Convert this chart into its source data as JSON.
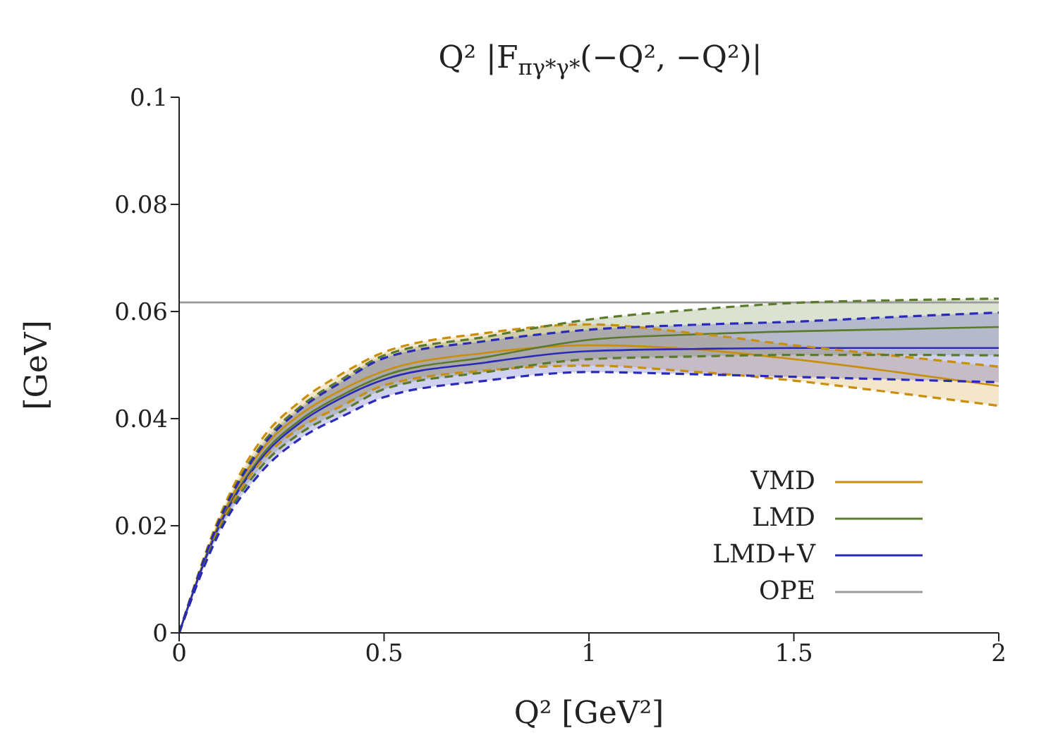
{
  "chart_data": {
    "type": "line",
    "title": "Q² |F$_{πγ*γ*}$(−Q², −Q²)|",
    "xlabel": "Q² [GeV²]",
    "ylabel": "[GeV]",
    "x": [
      0,
      0.1,
      0.2,
      0.3,
      0.4,
      0.5,
      0.75,
      1,
      1.25,
      1.5,
      1.75,
      2
    ],
    "series": [
      {
        "name": "VMD",
        "color": "#c98e0c",
        "values": [
          0,
          0.021,
          0.034,
          0.041,
          0.0455,
          0.0489,
          0.0523,
          0.0537,
          0.053,
          0.0511,
          0.0487,
          0.0461
        ],
        "lower": [
          0,
          0.02,
          0.032,
          0.0385,
          0.0425,
          0.0462,
          0.049,
          0.0499,
          0.0488,
          0.0471,
          0.0448,
          0.0424
        ],
        "upper": [
          0,
          0.022,
          0.036,
          0.0435,
          0.0485,
          0.0524,
          0.056,
          0.0576,
          0.056,
          0.0537,
          0.0517,
          0.0497
        ]
      },
      {
        "name": "LMD",
        "color": "#5b7a2c",
        "values": [
          0,
          0.0205,
          0.033,
          0.04,
          0.0445,
          0.048,
          0.0515,
          0.0547,
          0.0557,
          0.0563,
          0.0567,
          0.0571
        ],
        "lower": [
          0,
          0.0195,
          0.031,
          0.0375,
          0.0415,
          0.0455,
          0.0487,
          0.0511,
          0.0516,
          0.0519,
          0.0519,
          0.0518
        ],
        "upper": [
          0,
          0.0215,
          0.035,
          0.0425,
          0.0475,
          0.0518,
          0.0553,
          0.0585,
          0.0603,
          0.0616,
          0.0621,
          0.0624
        ]
      },
      {
        "name": "LMD+V",
        "color": "#2a2ab8",
        "values": [
          0,
          0.0203,
          0.0325,
          0.0395,
          0.044,
          0.0473,
          0.0505,
          0.0526,
          0.053,
          0.0532,
          0.0532,
          0.0532
        ],
        "lower": [
          0,
          0.019,
          0.03,
          0.0365,
          0.0405,
          0.044,
          0.0471,
          0.0487,
          0.0483,
          0.0478,
          0.0473,
          0.0468
        ],
        "upper": [
          0,
          0.0213,
          0.0345,
          0.042,
          0.047,
          0.0513,
          0.0545,
          0.0566,
          0.0575,
          0.0581,
          0.059,
          0.0598
        ]
      },
      {
        "name": "OPE",
        "color": "#999999",
        "x": [
          0,
          2
        ],
        "values": [
          0.0617,
          0.0617
        ]
      },
      {
        "color": "#c98e0c",
        "line_style": "dashed",
        "values": [
          0,
          0.02,
          0.032,
          0.0385,
          0.0425,
          0.0462,
          0.049,
          0.0499,
          0.0488,
          0.0471,
          0.0448,
          0.0424
        ]
      },
      {
        "color": "#c98e0c",
        "line_style": "dashed",
        "values": [
          0,
          0.022,
          0.036,
          0.0435,
          0.0485,
          0.0524,
          0.056,
          0.0576,
          0.056,
          0.0537,
          0.0517,
          0.0497
        ]
      },
      {
        "color": "#5b7a2c",
        "line_style": "dashed",
        "values": [
          0,
          0.0195,
          0.031,
          0.0375,
          0.0415,
          0.0455,
          0.0487,
          0.0511,
          0.0516,
          0.0519,
          0.0519,
          0.0518
        ]
      },
      {
        "color": "#5b7a2c",
        "line_style": "dashed",
        "values": [
          0,
          0.0215,
          0.035,
          0.0425,
          0.0475,
          0.0518,
          0.0553,
          0.0585,
          0.0603,
          0.0616,
          0.0621,
          0.0624
        ]
      },
      {
        "color": "#2a2ab8",
        "line_style": "dashed",
        "values": [
          0,
          0.019,
          0.03,
          0.0365,
          0.0405,
          0.044,
          0.0471,
          0.0487,
          0.0483,
          0.0478,
          0.0473,
          0.0468
        ]
      },
      {
        "color": "#2a2ab8",
        "line_style": "dashed",
        "values": [
          0,
          0.0213,
          0.0345,
          0.042,
          0.047,
          0.0513,
          0.0545,
          0.0566,
          0.0575,
          0.0581,
          0.059,
          0.0598
        ]
      }
    ],
    "xlim": [
      0,
      2
    ],
    "xticks": [
      0,
      0.5,
      1,
      1.5,
      2
    ],
    "ylim": [
      0,
      0.1
    ],
    "yticks": [
      0,
      0.02,
      0.04,
      0.06,
      0.08,
      0.1
    ],
    "grid": false,
    "legend": "bottom right",
    "marker": "none",
    "line_style": "solid"
  }
}
